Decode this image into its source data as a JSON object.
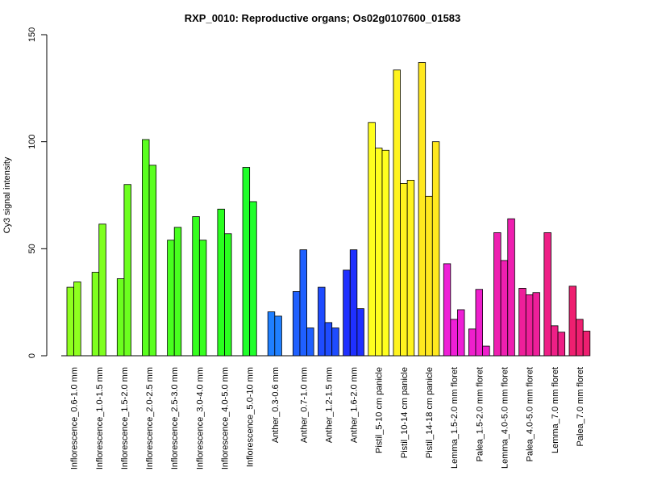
{
  "chart_data": {
    "type": "bar",
    "title": "RXP_0010: Reproductive organs; Os02g0107600_01583",
    "xlabel": "",
    "ylabel": "Cy3 signal intensity",
    "ylim": [
      0,
      150
    ],
    "yticks": [
      "0",
      "50",
      "100",
      "150"
    ],
    "grid": false,
    "legend": "none",
    "groups": [
      {
        "label": "Inflorescence_0.6-1.0 mm",
        "color": "#8FFF1F",
        "values": [
          32,
          34.5
        ]
      },
      {
        "label": "Inflorescence_1.0-1.5 mm",
        "color": "#7FFF1F",
        "values": [
          39,
          61.5
        ]
      },
      {
        "label": "Inflorescence_1.5-2.0 mm",
        "color": "#6CFF1F",
        "values": [
          36,
          80
        ]
      },
      {
        "label": "Inflorescence_2.0-2.5 mm",
        "color": "#5AFF1F",
        "values": [
          101,
          89
        ]
      },
      {
        "label": "Inflorescence_2.5-3.0 mm",
        "color": "#48FF1F",
        "values": [
          54,
          60
        ]
      },
      {
        "label": "Inflorescence_3.0-4.0 mm",
        "color": "#36FF1F",
        "values": [
          65,
          54
        ]
      },
      {
        "label": "Inflorescence_4.0-5.0 mm",
        "color": "#2AFF1F",
        "values": [
          68.5,
          57
        ]
      },
      {
        "label": "Inflorescence_5.0-10 mm",
        "color": "#1FFF2A",
        "values": [
          88,
          72
        ]
      },
      {
        "label": "Anther_0.3-0.6 mm",
        "color": "#1F7FFF",
        "values": [
          20.5,
          18.5
        ]
      },
      {
        "label": "Anther_0.7-1.0 mm",
        "color": "#1F60FF",
        "values": [
          30,
          49.5,
          13
        ]
      },
      {
        "label": "Anther_1.2-1.5 mm",
        "color": "#1F4CFF",
        "values": [
          32,
          15.5,
          13
        ]
      },
      {
        "label": "Anther_1.6-2.0 mm",
        "color": "#1F30FF",
        "values": [
          40,
          49.5,
          22
        ]
      },
      {
        "label": "Pistil_5-10 cm panicle",
        "color": "#FFFF1F",
        "values": [
          109,
          97,
          96
        ]
      },
      {
        "label": "Pistil_10-14 cm panicle",
        "color": "#FFF31F",
        "values": [
          133.5,
          80.5,
          82
        ]
      },
      {
        "label": "Pistil_14-18 cm panicle",
        "color": "#FFE81F",
        "values": [
          137,
          74.5,
          100
        ]
      },
      {
        "label": "Lemma_1.5-2.0 mm floret",
        "color": "#EE1FD6",
        "values": [
          43,
          17,
          21.5
        ]
      },
      {
        "label": "Palea_1.5-2.0 mm floret",
        "color": "#EE1FCC",
        "values": [
          12.5,
          31,
          4.5
        ]
      },
      {
        "label": "Lemma_4.0-5.0 mm floret",
        "color": "#EE1FB0",
        "values": [
          57.5,
          44.5,
          64
        ]
      },
      {
        "label": "Palea_4.0-5.0 mm floret",
        "color": "#EE1F9A",
        "values": [
          31.5,
          28.5,
          29.5
        ]
      },
      {
        "label": "Lemma_7.0 mm floret",
        "color": "#EE1F86",
        "values": [
          57.5,
          14,
          11
        ]
      },
      {
        "label": "Palea_7.0 mm floret",
        "color": "#EE1F70",
        "values": [
          32.5,
          17,
          11.5
        ]
      }
    ]
  }
}
